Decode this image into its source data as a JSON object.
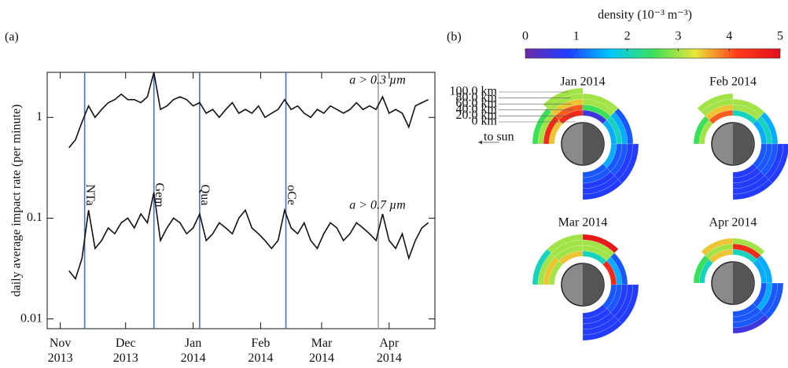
{
  "chart_data": [
    {
      "type": "line",
      "panel_label": "(a)",
      "y_label": "daily average impact rate (per minute)",
      "log_y": true,
      "ylim": [
        0.008,
        2.8
      ],
      "yticks": [
        0.01,
        0.1,
        1
      ],
      "xlim": [
        -6,
        172
      ],
      "xticks": [
        {
          "value": 0,
          "label": "Nov 2013"
        },
        {
          "value": 30,
          "label": "Dec 2013"
        },
        {
          "value": 61,
          "label": "Jan 2014"
        },
        {
          "value": 92,
          "label": "Feb 2014"
        },
        {
          "value": 120,
          "label": "Mar 2014"
        },
        {
          "value": 151,
          "label": "Apr 2014"
        }
      ],
      "x": [
        4,
        7,
        10,
        13,
        16,
        19,
        22,
        25,
        28,
        31,
        34,
        37,
        40,
        43,
        46,
        49,
        52,
        55,
        58,
        61,
        64,
        67,
        70,
        73,
        76,
        79,
        82,
        85,
        88,
        91,
        94,
        97,
        100,
        103,
        106,
        109,
        112,
        115,
        118,
        121,
        124,
        127,
        130,
        133,
        136,
        139,
        142,
        145,
        148,
        151,
        154,
        157,
        160,
        163,
        166,
        169
      ],
      "series": [
        {
          "name": "a > 0.3 µm",
          "color": "#111111",
          "values": [
            0.5,
            0.6,
            0.9,
            1.3,
            1.0,
            1.2,
            1.4,
            1.5,
            1.7,
            1.5,
            1.5,
            1.4,
            1.6,
            2.8,
            1.2,
            1.3,
            1.5,
            1.6,
            1.5,
            1.3,
            1.4,
            1.1,
            1.2,
            1.0,
            1.2,
            1.4,
            1.1,
            1.2,
            1.1,
            1.3,
            1.0,
            1.1,
            1.2,
            1.5,
            1.2,
            1.3,
            1.1,
            1.0,
            1.2,
            1.1,
            1.3,
            1.2,
            1.1,
            1.2,
            1.4,
            1.2,
            1.3,
            1.2,
            1.6,
            1.1,
            1.2,
            1.1,
            0.8,
            1.3,
            1.4,
            1.5
          ]
        },
        {
          "name": "a > 0.7 µm",
          "color": "#111111",
          "values": [
            0.03,
            0.025,
            0.04,
            0.12,
            0.05,
            0.06,
            0.08,
            0.07,
            0.09,
            0.1,
            0.08,
            0.11,
            0.09,
            0.18,
            0.06,
            0.08,
            0.1,
            0.09,
            0.07,
            0.08,
            0.11,
            0.06,
            0.07,
            0.09,
            0.08,
            0.07,
            0.1,
            0.12,
            0.08,
            0.07,
            0.06,
            0.05,
            0.06,
            0.12,
            0.08,
            0.07,
            0.09,
            0.06,
            0.05,
            0.07,
            0.09,
            0.08,
            0.06,
            0.07,
            0.09,
            0.08,
            0.07,
            0.06,
            0.11,
            0.06,
            0.05,
            0.07,
            0.04,
            0.06,
            0.08,
            0.09
          ]
        }
      ],
      "events": [
        {
          "x": 11.2,
          "label": "NTa",
          "color": "#4a70b5"
        },
        {
          "x": 43,
          "label": "Gem",
          "color": "#4a70b5"
        },
        {
          "x": 64,
          "label": "Qua",
          "color": "#4a70b5"
        },
        {
          "x": 103.6,
          "label": "oCe",
          "color": "#4a70b5"
        },
        {
          "x": 146,
          "color": "#a0a0a0"
        }
      ]
    },
    {
      "type": "polar-density",
      "panel_label": "(b)",
      "colorbar": {
        "label": "density (10⁻³ m⁻³)",
        "lim": [
          0,
          5
        ],
        "ticks": [
          0,
          1,
          2,
          3,
          4,
          5
        ],
        "colormap": [
          "#6a2ca8",
          "#1f3cff",
          "#00c8ff",
          "#3ae05a",
          "#e8e63a",
          "#ff3a1a",
          "#e0101a"
        ]
      },
      "altitude_labels": [
        "0 km",
        "20.0 km",
        "40.0 km",
        "60.0 km",
        "80.0 km",
        "100.0 km"
      ],
      "sun_label": "to sun",
      "panels": [
        {
          "title": "Jan 2014",
          "values": [
            [
              3.5,
              4.5,
              3,
              2.5,
              null
            ],
            [
              4.5,
              4,
              3.5,
              3,
              3
            ],
            [
              0.5,
              2.5,
              3,
              3,
              null
            ],
            [
              1.5,
              2,
              1.5,
              1,
              null
            ],
            [
              1.5,
              1,
              1,
              0.8,
              0.8
            ],
            [
              1,
              1,
              0.8,
              0.8,
              0.8
            ]
          ]
        },
        {
          "title": "Feb 2014",
          "values": [
            [
              3,
              2.5,
              null,
              null,
              null
            ],
            [
              4,
              3.5,
              3,
              3,
              null
            ],
            [
              2,
              3,
              3,
              null,
              null
            ],
            [
              1.5,
              2,
              1.5,
              null,
              null
            ],
            [
              1,
              1,
              1,
              0.8,
              0.8
            ],
            [
              0.8,
              0.8,
              0.8,
              0.8,
              0.8
            ]
          ]
        },
        {
          "title": "Mar 2014",
          "values": [
            [
              3,
              3.5,
              3,
              2,
              null
            ],
            [
              3.5,
              3,
              3,
              3,
              null
            ],
            [
              2,
              3,
              3,
              4.8,
              null
            ],
            [
              4.5,
              1.5,
              1,
              null,
              null
            ],
            [
              1,
              1,
              0.8,
              0.8,
              0.8
            ],
            [
              0.8,
              0.8,
              0.8,
              0.8,
              0.8
            ]
          ]
        },
        {
          "title": "Apr 2014",
          "values": [
            [
              2,
              2.5,
              null,
              null,
              null
            ],
            [
              3.5,
              3,
              3.5,
              null,
              null
            ],
            [
              2,
              4.5,
              3,
              null,
              null
            ],
            [
              1.5,
              1.5,
              null,
              null,
              null
            ],
            [
              1,
              1.5,
              1,
              1,
              null
            ],
            [
              1,
              1,
              1,
              0.5,
              null
            ]
          ]
        }
      ]
    }
  ]
}
